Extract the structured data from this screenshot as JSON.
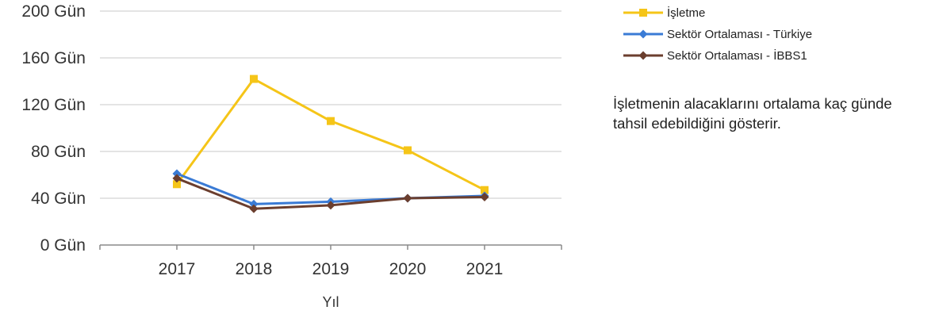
{
  "chart_data": {
    "type": "line",
    "categories": [
      "2017",
      "2018",
      "2019",
      "2020",
      "2021"
    ],
    "xlabel": "Yıl",
    "ylabel": "",
    "ylim": [
      0,
      200
    ],
    "yticks": [
      0,
      40,
      80,
      120,
      160,
      200
    ],
    "ytick_labels": [
      "0 Gün",
      "40 Gün",
      "80 Gün",
      "120 Gün",
      "160 Gün",
      "200 Gün"
    ],
    "grid": true,
    "legend_position": "top-right",
    "series": [
      {
        "name": "İşletme",
        "values": [
          52,
          142,
          106,
          81,
          47
        ],
        "color": "#F5C518",
        "marker": "square"
      },
      {
        "name": "Sektör Ortalaması - Türkiye",
        "values": [
          61,
          35,
          37,
          40,
          42
        ],
        "color": "#3A7BD5",
        "marker": "diamond"
      },
      {
        "name": "Sektör Ortalaması - İBBS1",
        "values": [
          57,
          31,
          34,
          40,
          41
        ],
        "color": "#6B3E2E",
        "marker": "diamond"
      }
    ]
  },
  "note": "İşletmenin alacaklarını ortalama kaç günde tahsil edebildiğini gösterir."
}
